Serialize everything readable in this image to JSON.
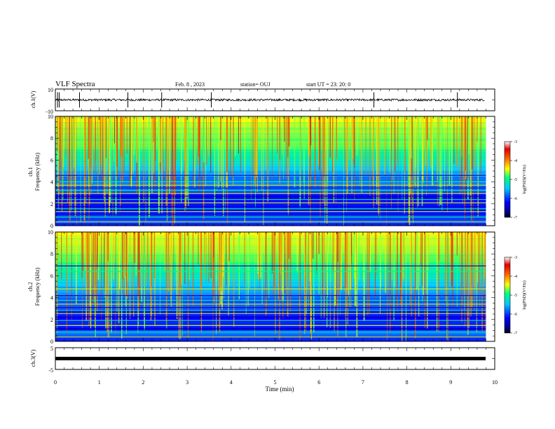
{
  "header": {
    "title": "VLF Spectra",
    "date": "Feb. 8 , 2023",
    "station": "station= OUJ",
    "start": "start UT = 23: 20: 0"
  },
  "chart_data": [
    {
      "type": "line",
      "name_label": "ch.1(V)",
      "ylabel": "ch.1(V)",
      "ylim": [
        -10,
        10
      ],
      "yticks": [
        "10",
        "-10"
      ],
      "xlim": [
        0,
        10
      ],
      "baseline_value": 0,
      "noise_amplitude": 1.0,
      "spikes_at_min": [
        0.05,
        0.09,
        0.55,
        1.65,
        2.42,
        3.55,
        7.25,
        9.15
      ]
    },
    {
      "type": "heatmap",
      "channel_label": "ch.1",
      "ylabel": "Frequency (kHz)",
      "ylim": [
        0,
        10
      ],
      "yticks": [
        "0",
        "2",
        "4",
        "6",
        "8",
        "10"
      ],
      "xlim": [
        0,
        9.8
      ],
      "colorbar": {
        "label": "log(PSD)(V²/Hz)",
        "range": [
          -7,
          -3
        ],
        "ticks": [
          "-3",
          "-4",
          "-5",
          "-6",
          "-7"
        ]
      },
      "horizontal_lines_khz": [
        0.35,
        0.8,
        1.05,
        1.3,
        1.55,
        1.75,
        2.1,
        2.4,
        2.7,
        2.95,
        3.2,
        3.45,
        3.7,
        4.05,
        4.6
      ]
    },
    {
      "type": "heatmap",
      "channel_label": "ch.2",
      "ylabel": "Frequency (kHz)",
      "ylim": [
        0,
        10
      ],
      "yticks": [
        "0",
        "2",
        "4",
        "6",
        "8",
        "10"
      ],
      "xlim": [
        0,
        9.8
      ],
      "colorbar": {
        "label": "log(PSD)(V²/Hz)",
        "range": [
          -7,
          -3
        ],
        "ticks": [
          "-3",
          "-4",
          "-5",
          "-6",
          "-7"
        ]
      },
      "horizontal_lines_khz": [
        0.4,
        0.85,
        1.15,
        1.45,
        1.9,
        2.25,
        2.55,
        2.85,
        3.1,
        3.4,
        3.75,
        4.2,
        4.8,
        6.4,
        6.9
      ]
    },
    {
      "type": "line",
      "name_label": "ch.3(V)",
      "ylabel": "ch.3(V)",
      "ylim": [
        -5,
        5
      ],
      "yticks": [
        "5",
        "-5"
      ],
      "xlim": [
        0,
        10
      ],
      "baseline_value": 0,
      "series_extent_min": [
        0,
        9.8
      ]
    }
  ],
  "xaxis": {
    "label": "Time (min)",
    "ticks": [
      "0",
      "1",
      "2",
      "3",
      "4",
      "5",
      "6",
      "7",
      "8",
      "9",
      "10"
    ],
    "range": [
      0,
      10
    ]
  }
}
